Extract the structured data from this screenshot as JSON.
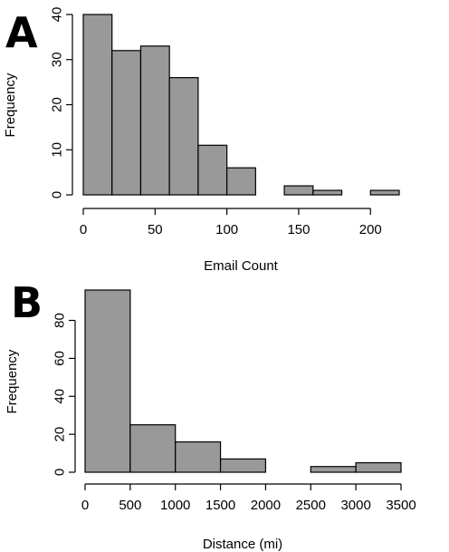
{
  "chart_data": [
    {
      "type": "histogram",
      "panel_label": "A",
      "xlabel": "Email Count",
      "ylabel": "Frequency",
      "bin_edges": [
        0,
        20,
        40,
        60,
        80,
        100,
        120,
        140,
        160,
        180,
        200,
        220
      ],
      "values": [
        40,
        32,
        33,
        26,
        11,
        6,
        0,
        2,
        1,
        0,
        1
      ],
      "xticks": [
        0,
        50,
        100,
        150,
        200
      ],
      "yticks": [
        0,
        10,
        20,
        30,
        40
      ],
      "xlim": [
        0,
        220
      ],
      "ylim": [
        0,
        40
      ],
      "bar_color": "#999999",
      "grid": false
    },
    {
      "type": "histogram",
      "panel_label": "B",
      "xlabel": "Distance (mi)",
      "ylabel": "Frequency",
      "bin_edges": [
        0,
        500,
        1000,
        1500,
        2000,
        2500,
        3000,
        3500
      ],
      "values": [
        96,
        25,
        16,
        7,
        0,
        3,
        5
      ],
      "xticks": [
        0,
        500,
        1000,
        1500,
        2000,
        2500,
        3000,
        3500
      ],
      "yticks": [
        0,
        20,
        40,
        60,
        80
      ],
      "xlim": [
        0,
        3500
      ],
      "ylim": [
        0,
        96
      ],
      "bar_color": "#999999",
      "grid": false
    }
  ]
}
